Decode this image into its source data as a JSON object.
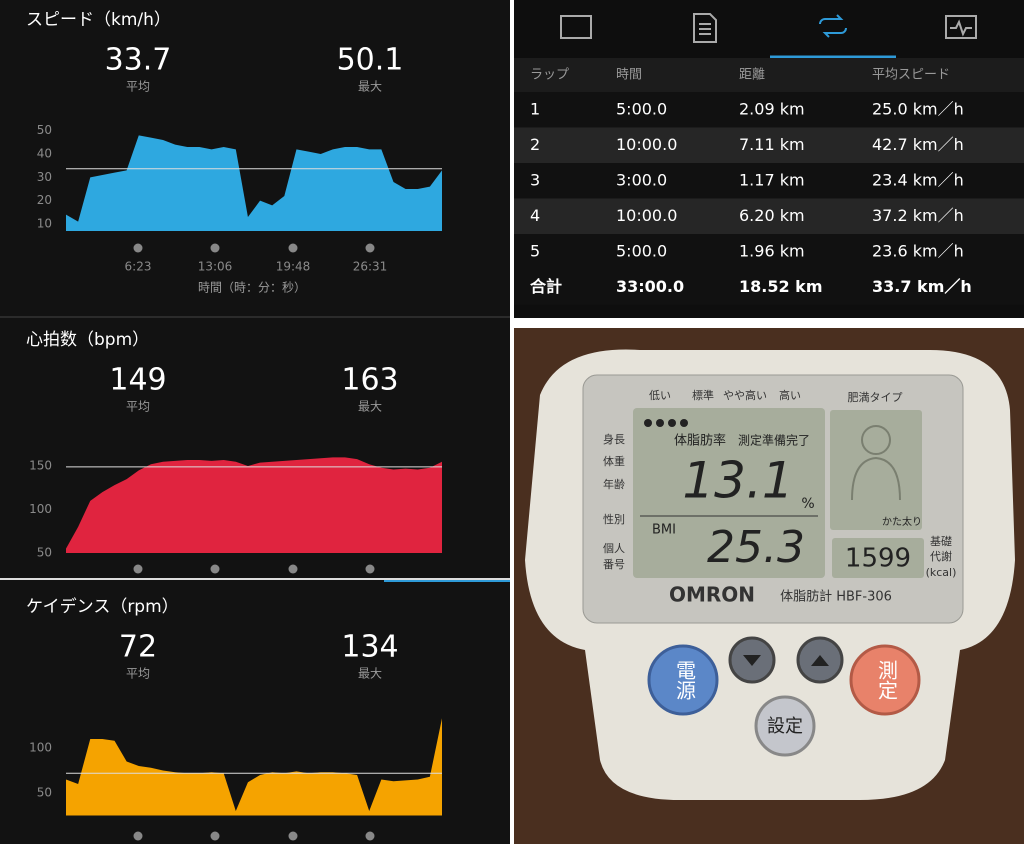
{
  "panels": [
    {
      "title": "スピード（km/h）",
      "stats": [
        {
          "value": 33.7,
          "label": "平均"
        },
        {
          "value": 50.1,
          "label": "最大"
        }
      ],
      "chart": {
        "type": "area",
        "color": "#2ea8e0",
        "ylim": [
          7,
          52
        ],
        "yticks": [
          10,
          20,
          30,
          40,
          50
        ],
        "values": [
          14,
          11,
          30,
          31,
          32,
          33,
          48,
          47,
          46,
          44,
          43,
          43,
          42,
          43,
          42,
          13,
          20,
          18,
          22,
          42,
          41,
          40,
          42,
          43,
          43,
          42,
          42,
          28,
          25,
          25,
          26,
          33
        ]
      },
      "xticks": [
        "6:23",
        "13:06",
        "19:48",
        "26:31"
      ],
      "xlabel": "時間（時：分：秒）"
    },
    {
      "title": "心拍数（bpm）",
      "stats": [
        {
          "value": 149,
          "label": "平均"
        },
        {
          "value": 163,
          "label": "最大"
        }
      ],
      "chart": {
        "type": "area",
        "color": "#e0243f",
        "ylim": [
          50,
          165
        ],
        "yticks": [
          50,
          100,
          150
        ],
        "values": [
          55,
          80,
          110,
          120,
          128,
          135,
          145,
          152,
          155,
          156,
          157,
          157,
          156,
          157,
          155,
          150,
          154,
          155,
          156,
          157,
          158,
          159,
          160,
          160,
          158,
          152,
          148,
          146,
          147,
          146,
          148,
          155
        ]
      }
    },
    {
      "title": "ケイデンス（rpm）",
      "stats": [
        {
          "value": 72,
          "label": "平均"
        },
        {
          "value": 134,
          "label": "最大"
        }
      ],
      "chart": {
        "type": "area",
        "color": "#f5a300",
        "ylim": [
          25,
          140
        ],
        "yticks": [
          50,
          100
        ],
        "values": [
          65,
          60,
          110,
          110,
          108,
          85,
          80,
          78,
          75,
          73,
          72,
          72,
          73,
          72,
          30,
          62,
          70,
          73,
          72,
          74,
          72,
          73,
          73,
          72,
          70,
          30,
          65,
          63,
          64,
          65,
          68,
          133
        ]
      }
    }
  ],
  "table": {
    "header": [
      "ラップ",
      "時間",
      "距離",
      "平均スピード"
    ],
    "rows": [
      [
        "1",
        "5:00.0",
        "2.09 km",
        "25.0 km／h"
      ],
      [
        "2",
        "10:00.0",
        "7.11 km",
        "42.7 km／h"
      ],
      [
        "3",
        "3:00.0",
        "1.17 km",
        "23.4 km／h"
      ],
      [
        "4",
        "10:00.0",
        "6.20 km",
        "37.2 km／h"
      ],
      [
        "5",
        "5:00.0",
        "1.96 km",
        "23.6 km／h"
      ]
    ],
    "total": [
      "合計",
      "33:00.0",
      "18.52 km",
      "33.7 km／h"
    ]
  },
  "device": {
    "scale_labels": [
      "低い",
      "標準",
      "やや高い",
      "高い"
    ],
    "type_label": "肥満タイプ",
    "side_labels": [
      "身長",
      "体重",
      "年齢",
      "性別",
      "個人",
      "番号"
    ],
    "lcd_title": "体脂肪率",
    "lcd_status": "測定準備完了",
    "body_fat": "13.1",
    "percent": "%",
    "bmi_label": "BMI",
    "bmi": "25.3",
    "metabolism": "1599",
    "metabolism_label": [
      "基礎",
      "代謝",
      "(kcal)"
    ],
    "body_type": "かた太り",
    "brand": "OMRON",
    "model": "体脂肪計 HBF-306",
    "buttons": [
      "電源",
      "設定",
      "測定"
    ]
  }
}
